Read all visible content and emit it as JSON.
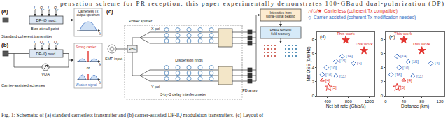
{
  "page": {
    "top_text": "pensation scheme for PR reception, this paper experimentally demonstrates 100-GBaud dual-polarization (DP)",
    "caption": "Fig. 1: Schematic of (a) standard carrierless transmitter and (b) carrier-assisted DP-IQ modulation transmitters. (c) Layout of"
  },
  "figure": {
    "panel_a": {
      "label": "(a)",
      "title": "Standard coherent transmitter",
      "inputs": [
        {
          "base": "I",
          "sub": "x"
        },
        {
          "base": "Q",
          "sub": "x"
        },
        {
          "base": "I",
          "sub": "y"
        },
        {
          "base": "Q",
          "sub": "y"
        }
      ],
      "modulator": "DP-IQ mod.",
      "bias": "Bias at null point",
      "spectrum": [
        "Carrierless Tx",
        "output spectrum"
      ],
      "axis": "λ"
    },
    "panel_b": {
      "label": "(b)",
      "title": "Carrier-assisted schemes",
      "inputs": [
        {
          "base": "I",
          "sub": "x"
        },
        {
          "base": "Q",
          "sub": "x"
        },
        {
          "base": "I",
          "sub": "y"
        },
        {
          "base": "Q",
          "sub": "y"
        }
      ],
      "modulator": "DP-IQ mod.",
      "attenuator": "VOA",
      "strong": "Strong carrier",
      "or": "or",
      "weak": "Weaker signal",
      "axis": "λ"
    },
    "panel_c": {
      "label": "(c)",
      "input": "SMF input",
      "pbs": "PBS",
      "splitter": "Power splitter",
      "xpol": "X pol",
      "ypol": "Y pol",
      "rings": "Dispersion rings",
      "interferometer": "3-by-3 delay interferometer",
      "pd": "PD array",
      "intensities": [
        "Intensities from",
        "signal-signal beating"
      ],
      "recovery": [
        "Phase retrieval",
        "field recovery"
      ]
    },
    "legend_items": [
      {
        "symbols": "△/✩/★",
        "text": "Carrierless (coherent Tx compatible)",
        "color": "#e3342f"
      },
      {
        "symbols": "◇",
        "text": "Carrier-assisted (coherent Tx modification needed)",
        "color": "#3b6fc2"
      }
    ]
  },
  "chart_data": [
    {
      "type": "scatter",
      "title": "(d)",
      "x_label": "Net bit rate (Gb/s/λ)",
      "y_label": "Net OSE (b/s/Hz)",
      "xlim": [
        200,
        1300
      ],
      "xticks": [
        400,
        800,
        1200
      ],
      "ylim": [
        0,
        9
      ],
      "yticks": [
        0,
        2,
        4,
        6,
        8
      ],
      "grid": false,
      "series": [
        {
          "color": "#e3342f",
          "marker": "star",
          "points": [
            {
              "x": 750,
              "y": 7.9,
              "label": "This work"
            },
            {
              "x": 1100,
              "y": 6.4,
              "label": "This work"
            }
          ]
        },
        {
          "color": "#e3342f",
          "marker": "triangle-up-open",
          "points": [
            {
              "x": 300,
              "y": 2.2,
              "label": "[4]"
            }
          ]
        },
        {
          "color": "#e3342f",
          "marker": "star-open",
          "points": [
            {
              "x": 420,
              "y": 1.2,
              "label": "[5]"
            }
          ]
        },
        {
          "color": "#3b6fc2",
          "marker": "diamond-open",
          "points": [
            {
              "x": 900,
              "y": 4.6,
              "label": "[3]"
            },
            {
              "x": 680,
              "y": 5.6,
              "label": "[14]"
            },
            {
              "x": 560,
              "y": 4.9,
              "label": "[15]"
            },
            {
              "x": 380,
              "y": 4.0,
              "label": "[10]"
            },
            {
              "x": 560,
              "y": 2.8,
              "label": "[11]"
            },
            {
              "x": 300,
              "y": 3.0,
              "label": "[16]"
            }
          ]
        }
      ]
    },
    {
      "type": "scatter",
      "title": "(e)",
      "x_label": "Distance (km)",
      "xlim": [
        0,
        130
      ],
      "xticks": [
        0,
        40,
        80,
        120
      ],
      "ylim": [
        0,
        9
      ],
      "yticks": [
        0,
        2,
        4,
        6,
        8
      ],
      "grid": false,
      "series": [
        {
          "color": "#e3342f",
          "marker": "star",
          "points": [
            {
              "x": 40,
              "y": 7.9,
              "label": "This work"
            },
            {
              "x": 80,
              "y": 6.4,
              "label": "This work"
            }
          ]
        },
        {
          "color": "#e3342f",
          "marker": "triangle-up-open",
          "points": [
            {
              "x": 40,
              "y": 2.2,
              "label": "[4]"
            }
          ]
        },
        {
          "color": "#e3342f",
          "marker": "star-open",
          "points": [
            {
              "x": 25,
              "y": 1.2,
              "label": "[5]"
            }
          ]
        },
        {
          "color": "#3b6fc2",
          "marker": "diamond-open",
          "points": [
            {
              "x": 100,
              "y": 4.6,
              "label": "[3]"
            },
            {
              "x": 25,
              "y": 5.6,
              "label": "[14]"
            },
            {
              "x": 50,
              "y": 4.8,
              "label": "[15]"
            },
            {
              "x": 30,
              "y": 4.0,
              "label": "[10]"
            },
            {
              "x": 60,
              "y": 2.8,
              "label": "[11]"
            },
            {
              "x": 12,
              "y": 3.0,
              "label": "[16]"
            }
          ]
        }
      ]
    }
  ]
}
